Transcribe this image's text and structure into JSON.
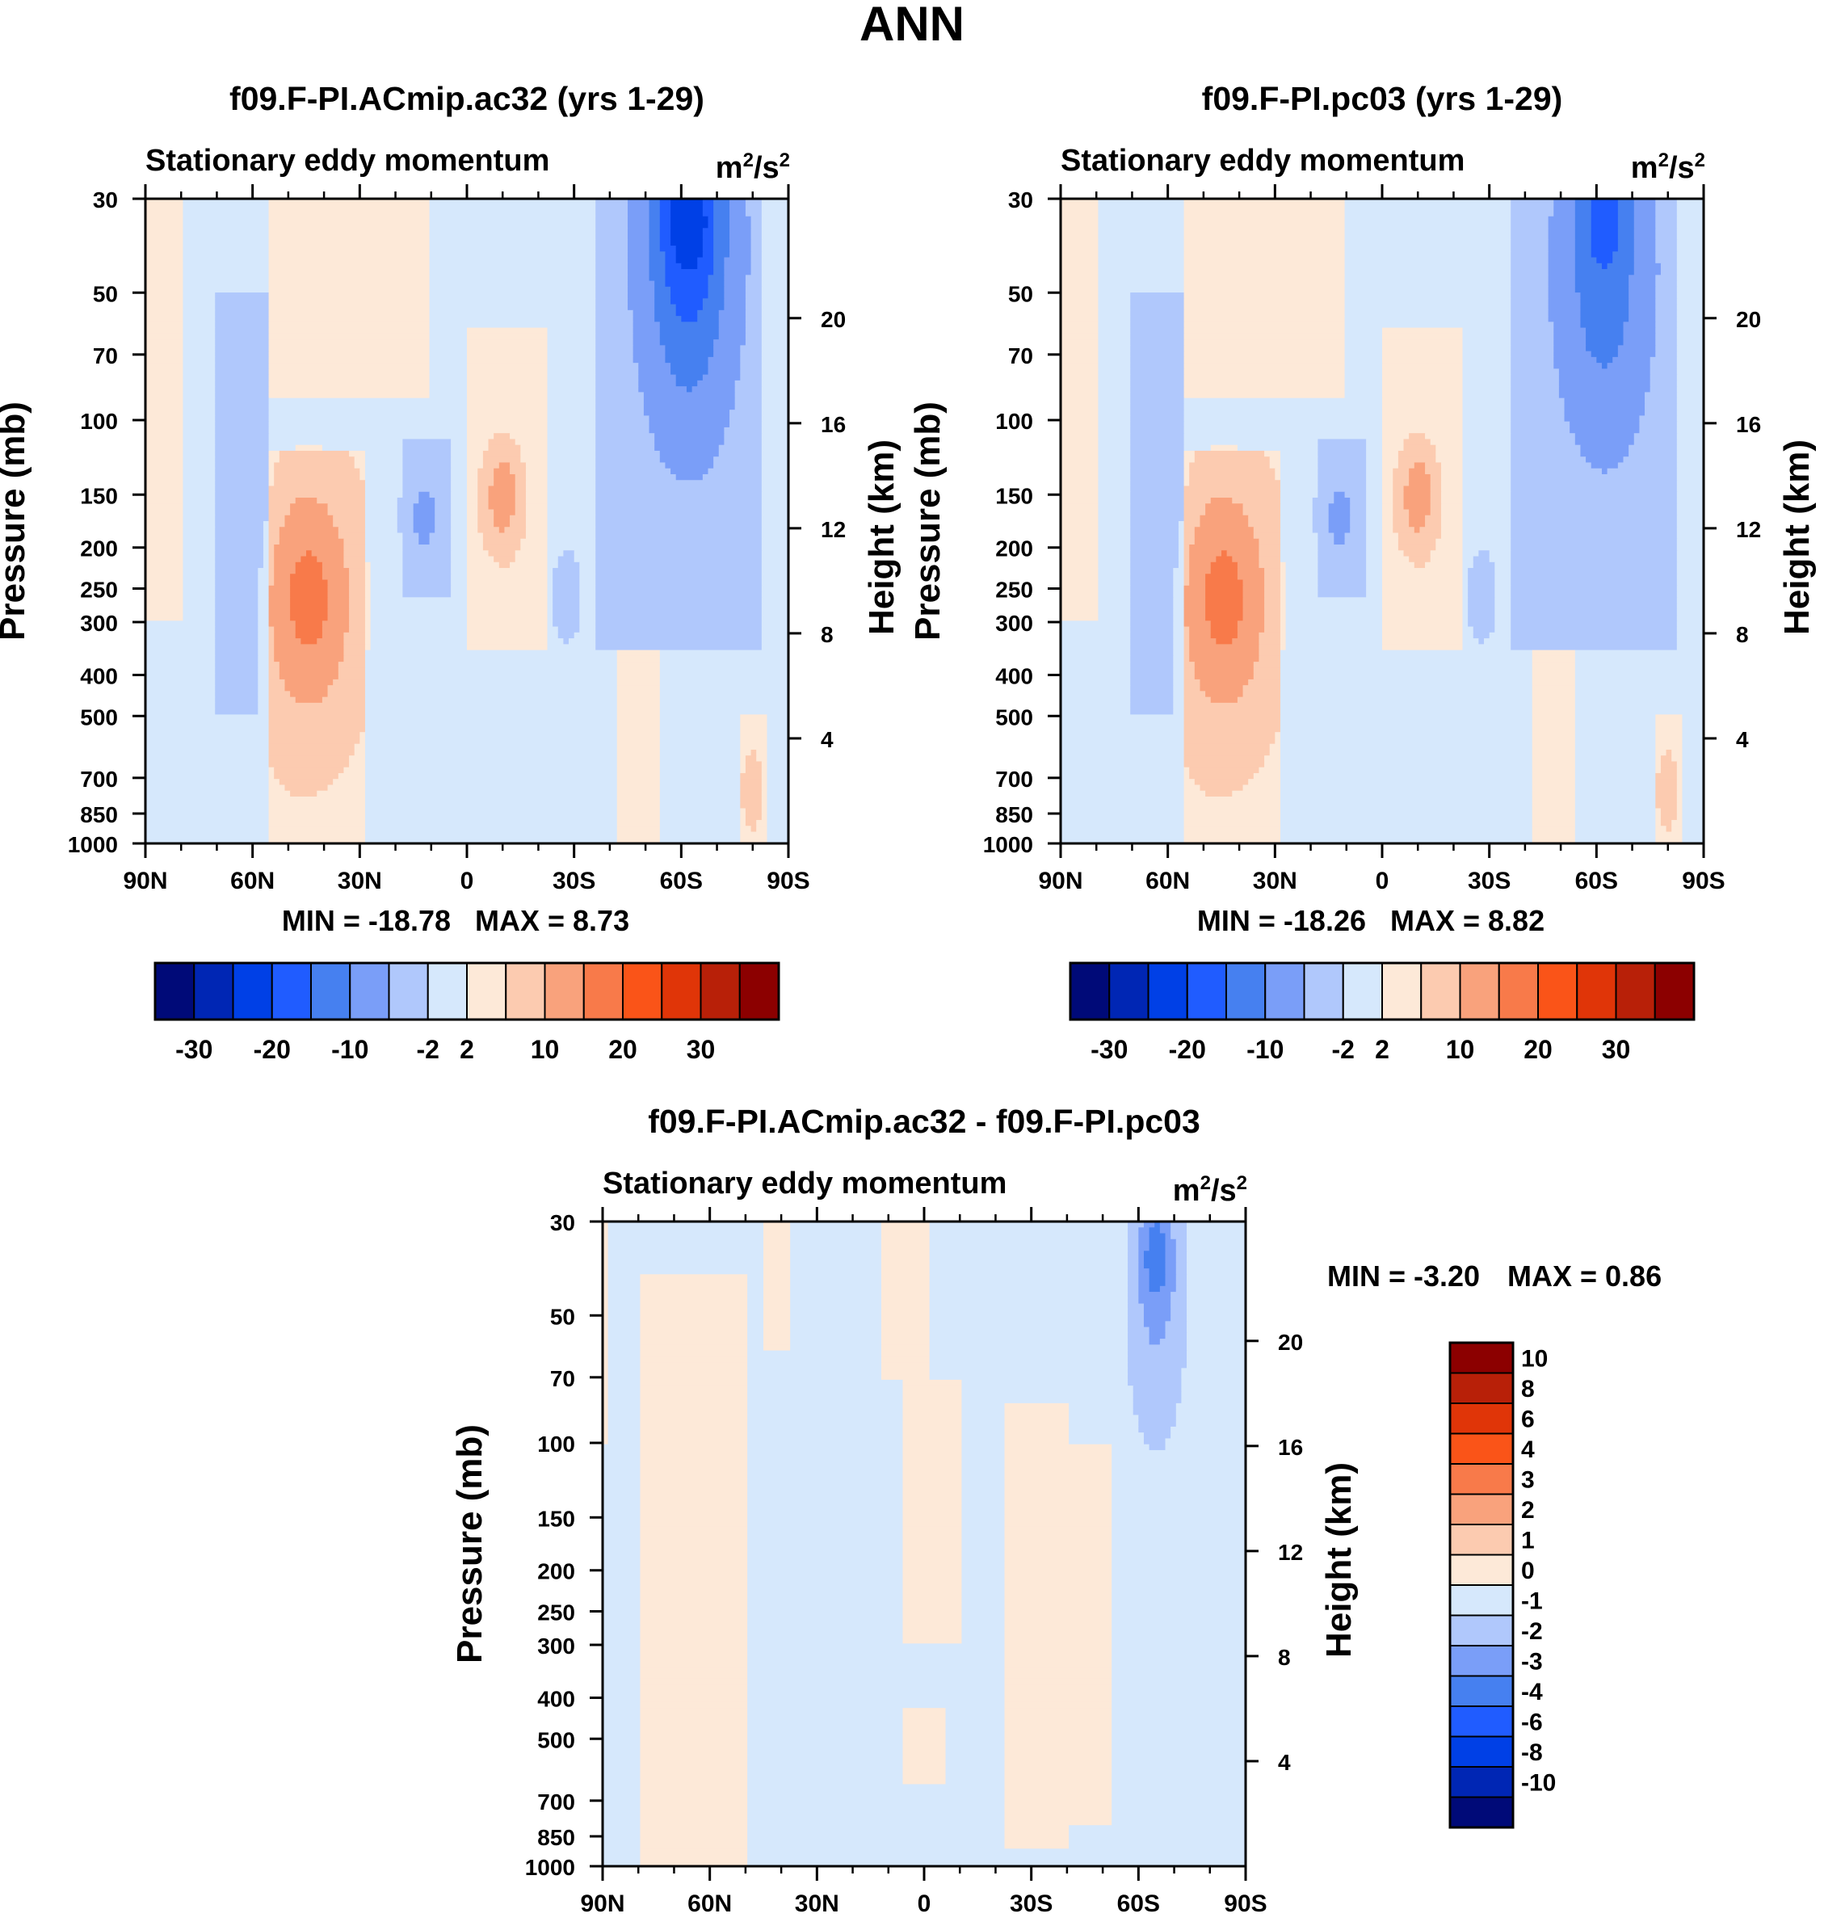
{
  "figure_title": "ANN",
  "colors": {
    "full_palette": [
      "#000a78",
      "#0026b4",
      "#0040e6",
      "#205cff",
      "#4680f0",
      "#7a9ef8",
      "#b0c8fc",
      "#d6e8fc",
      "#fde9d8",
      "#fccbb0",
      "#f9a27c",
      "#f87a4a",
      "#fa5418",
      "#e03508",
      "#b82008",
      "#8c0000"
    ],
    "diff_palette": [
      "#000a78",
      "#0026b4",
      "#0040e6",
      "#205cff",
      "#4680f0",
      "#7a9ef8",
      "#b0c8fc",
      "#d6e8fc",
      "#fde9d8",
      "#fccbb0",
      "#f9a27c",
      "#f87a4a",
      "#fa5418",
      "#e03508",
      "#b82008",
      "#8c0000"
    ]
  },
  "chart_data": [
    {
      "type": "heatmap",
      "title": "f09.F-PI.ACmip.ac32 (yrs 1-29)",
      "subtitle_left": "Stationary eddy momentum",
      "units": "m²/s²",
      "units_base": "m",
      "units_sup1": "2",
      "units_mid": "/s",
      "units_sup2": "2",
      "xlabel": "",
      "ylabel": "Pressure (mb)",
      "ylabel_right": "Height (km)",
      "xlim": [
        90,
        -90
      ],
      "x_ticks": [
        {
          "v": 90,
          "l": "90N"
        },
        {
          "v": 60,
          "l": "60N"
        },
        {
          "v": 30,
          "l": "30N"
        },
        {
          "v": 0,
          "l": "0"
        },
        {
          "v": -30,
          "l": "30S"
        },
        {
          "v": -60,
          "l": "60S"
        },
        {
          "v": -90,
          "l": "90S"
        }
      ],
      "ylim": [
        1000,
        30
      ],
      "y_ticks": [
        30,
        50,
        70,
        100,
        150,
        200,
        250,
        300,
        400,
        500,
        700,
        850,
        1000
      ],
      "height_ticks": [
        4,
        8,
        12,
        16,
        20
      ],
      "min_label": "MIN = -18.78",
      "max_label": "MAX =   8.73",
      "min_value": -18.78,
      "max_value": 8.73,
      "colorbar": {
        "orientation": "horizontal",
        "labels": [
          "-30",
          "-20",
          "-10",
          "-2",
          "2",
          "10",
          "20",
          "30"
        ]
      },
      "features": [
        {
          "lat": 62,
          "p": 190,
          "value": -3,
          "wlat": 7,
          "wp": 0.9
        },
        {
          "lat": 46,
          "p": 280,
          "value": 4,
          "wlat": 15,
          "wp": 0.7
        },
        {
          "lat": 44,
          "p": 260,
          "value": 7,
          "wlat": 9,
          "wp": 0.45
        },
        {
          "lat": 12,
          "p": 170,
          "value": -3,
          "wlat": 7,
          "wp": 0.35
        },
        {
          "lat": -10,
          "p": 155,
          "value": 4,
          "wlat": 6,
          "wp": 0.3
        },
        {
          "lat": -10,
          "p": 150,
          "value": 4,
          "wlat": 3,
          "wp": 0.18
        },
        {
          "lat": -28,
          "p": 260,
          "value": -2,
          "wlat": 5,
          "wp": 0.3
        },
        {
          "lat": -62,
          "p": 40,
          "value": -14,
          "wlat": 12,
          "wp": 0.9
        },
        {
          "lat": -62,
          "p": 32,
          "value": -8,
          "wlat": 8,
          "wp": 0.35
        },
        {
          "lat": -80,
          "p": 750,
          "value": 3,
          "wlat": 3,
          "wp": 0.2
        }
      ]
    },
    {
      "type": "heatmap",
      "title": "f09.F-PI.pc03 (yrs 1-29)",
      "subtitle_left": "Stationary eddy momentum",
      "units": "m²/s²",
      "units_base": "m",
      "units_sup1": "2",
      "units_mid": "/s",
      "units_sup2": "2",
      "xlabel": "",
      "ylabel": "Pressure (mb)",
      "ylabel_right": "Height (km)",
      "xlim": [
        90,
        -90
      ],
      "x_ticks": [
        {
          "v": 90,
          "l": "90N"
        },
        {
          "v": 60,
          "l": "60N"
        },
        {
          "v": 30,
          "l": "30N"
        },
        {
          "v": 0,
          "l": "0"
        },
        {
          "v": -30,
          "l": "30S"
        },
        {
          "v": -60,
          "l": "60S"
        },
        {
          "v": -90,
          "l": "90S"
        }
      ],
      "ylim": [
        1000,
        30
      ],
      "y_ticks": [
        30,
        50,
        70,
        100,
        150,
        200,
        250,
        300,
        400,
        500,
        700,
        850,
        1000
      ],
      "height_ticks": [
        4,
        8,
        12,
        16,
        20
      ],
      "min_label": "MIN = -18.26",
      "max_label": "MAX =   8.82",
      "min_value": -18.26,
      "max_value": 8.82,
      "colorbar": {
        "orientation": "horizontal",
        "labels": [
          "-30",
          "-20",
          "-10",
          "-2",
          "2",
          "10",
          "20",
          "30"
        ]
      },
      "features": [
        {
          "lat": 62,
          "p": 190,
          "value": -3,
          "wlat": 7,
          "wp": 0.9
        },
        {
          "lat": 46,
          "p": 280,
          "value": 4,
          "wlat": 15,
          "wp": 0.7
        },
        {
          "lat": 44,
          "p": 260,
          "value": 7,
          "wlat": 9,
          "wp": 0.45
        },
        {
          "lat": 12,
          "p": 170,
          "value": -3,
          "wlat": 7,
          "wp": 0.35
        },
        {
          "lat": -10,
          "p": 155,
          "value": 4,
          "wlat": 6,
          "wp": 0.3
        },
        {
          "lat": -10,
          "p": 150,
          "value": 4,
          "wlat": 3,
          "wp": 0.18
        },
        {
          "lat": -28,
          "p": 260,
          "value": -2,
          "wlat": 5,
          "wp": 0.3
        },
        {
          "lat": -62,
          "p": 45,
          "value": -10,
          "wlat": 12,
          "wp": 0.85
        },
        {
          "lat": -62,
          "p": 32,
          "value": -6,
          "wlat": 7,
          "wp": 0.3
        },
        {
          "lat": -80,
          "p": 750,
          "value": 3,
          "wlat": 3,
          "wp": 0.2
        }
      ]
    },
    {
      "type": "heatmap",
      "title": "f09.F-PI.ACmip.ac32 - f09.F-PI.pc03",
      "subtitle_left": "Stationary eddy momentum",
      "units": "m²/s²",
      "units_base": "m",
      "units_sup1": "2",
      "units_mid": "/s",
      "units_sup2": "2",
      "xlabel": "",
      "ylabel": "Pressure (mb)",
      "ylabel_right": "Height (km)",
      "xlim": [
        90,
        -90
      ],
      "x_ticks": [
        {
          "v": 90,
          "l": "90N"
        },
        {
          "v": 60,
          "l": "60N"
        },
        {
          "v": 30,
          "l": "30N"
        },
        {
          "v": 0,
          "l": "0"
        },
        {
          "v": -30,
          "l": "30S"
        },
        {
          "v": -60,
          "l": "60S"
        },
        {
          "v": -90,
          "l": "90S"
        }
      ],
      "ylim": [
        1000,
        30
      ],
      "y_ticks": [
        30,
        50,
        70,
        100,
        150,
        200,
        250,
        300,
        400,
        500,
        700,
        850,
        1000
      ],
      "height_ticks": [
        4,
        8,
        12,
        16,
        20
      ],
      "min_label": "MIN =  -3.20",
      "max_label": "MAX =   0.86",
      "min_value": -3.2,
      "max_value": 0.86,
      "colorbar": {
        "orientation": "vertical",
        "labels": [
          "10",
          "8",
          "6",
          "4",
          "3",
          "2",
          "1",
          "0",
          "-1",
          "-2",
          "-3",
          "-4",
          "-6",
          "-8",
          "-10"
        ]
      },
      "features": [
        {
          "lat": -65,
          "p": 50,
          "value": -1.5,
          "wlat": 8,
          "wp": 0.7
        },
        {
          "lat": -65,
          "p": 35,
          "value": -2,
          "wlat": 5,
          "wp": 0.3
        }
      ],
      "regions": [
        {
          "lat_from": 88,
          "lat_to": 90,
          "p_top": 30,
          "p_bot": 100,
          "value": 0.5
        },
        {
          "lat_from": 50,
          "lat_to": 80,
          "p_top": 40,
          "p_bot": 1000,
          "value": 0.5
        },
        {
          "lat_from": 38,
          "lat_to": 45,
          "p_top": 30,
          "p_bot": 60,
          "value": 0.5
        },
        {
          "lat_from": -1,
          "lat_to": 12,
          "p_top": 30,
          "p_bot": 70,
          "value": 0.5
        },
        {
          "lat_from": -10,
          "lat_to": 6,
          "p_top": 70,
          "p_bot": 300,
          "value": 0.5
        },
        {
          "lat_from": -40,
          "lat_to": -22,
          "p_top": 80,
          "p_bot": 900,
          "value": 0.5
        },
        {
          "lat_from": -52,
          "lat_to": -40,
          "p_top": 100,
          "p_bot": 800,
          "value": 0.5
        },
        {
          "lat_from": -6,
          "lat_to": 6,
          "p_top": 420,
          "p_bot": 650,
          "value": 0.5
        }
      ]
    }
  ]
}
